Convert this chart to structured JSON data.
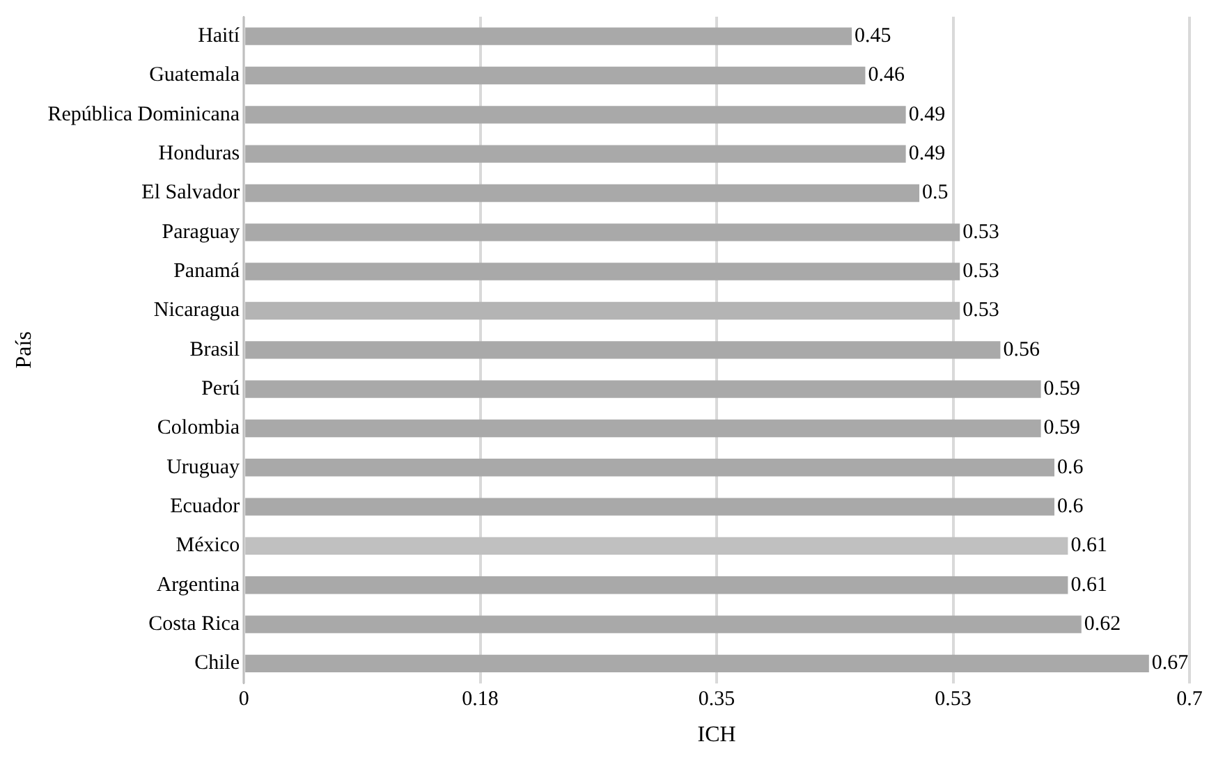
{
  "chart_data": {
    "type": "bar",
    "orientation": "horizontal",
    "xlabel": "ICH",
    "ylabel": "País",
    "categories": [
      "Haití",
      "Guatemala",
      "República Dominicana",
      "Honduras",
      "El Salvador",
      "Paraguay",
      "Panamá",
      "Nicaragua",
      "Brasil",
      "Perú",
      "Colombia",
      "Uruguay",
      "Ecuador",
      "México",
      "Argentina",
      "Costa Rica",
      "Chile"
    ],
    "values": [
      0.45,
      0.46,
      0.49,
      0.49,
      0.5,
      0.53,
      0.53,
      0.53,
      0.56,
      0.59,
      0.59,
      0.6,
      0.6,
      0.61,
      0.61,
      0.62,
      0.67
    ],
    "colors": [
      "#a9a9a9",
      "#a9a9a9",
      "#a9a9a9",
      "#a9a9a9",
      "#a9a9a9",
      "#a9a9a9",
      "#a9a9a9",
      "#b4b4b4",
      "#a9a9a9",
      "#a9a9a9",
      "#a9a9a9",
      "#a9a9a9",
      "#a9a9a9",
      "#c0c0c0",
      "#a9a9a9",
      "#a9a9a9",
      "#a9a9a9"
    ],
    "xlim": [
      0,
      0.7
    ],
    "xticks": [
      0,
      {
        "value": 0.175,
        "label": "0.18"
      },
      0.35,
      {
        "value": 0.525,
        "label": "0.53"
      },
      0.7
    ],
    "grid": "x",
    "data_labels": true,
    "legend": false
  }
}
